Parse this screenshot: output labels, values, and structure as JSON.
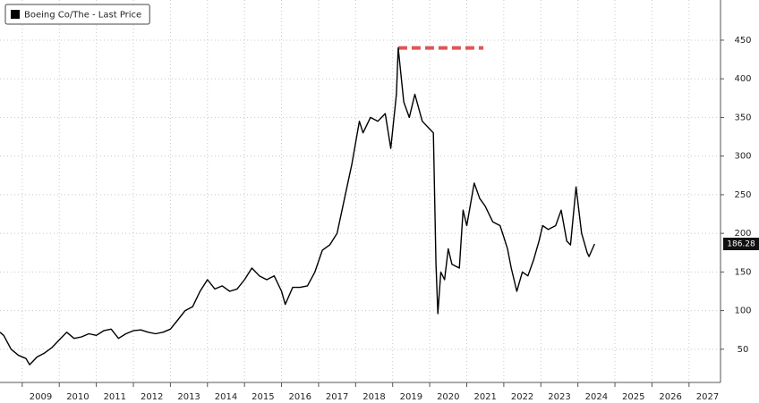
{
  "chart_data": {
    "type": "line",
    "series": [
      {
        "name": "Boeing Co/The - Last Price",
        "color": "#000000",
        "x": [
          2008.4,
          2008.5,
          2008.7,
          2008.9,
          2009.1,
          2009.2,
          2009.4,
          2009.6,
          2009.8,
          2010.0,
          2010.2,
          2010.4,
          2010.6,
          2010.8,
          2011.0,
          2011.2,
          2011.4,
          2011.6,
          2011.8,
          2012.0,
          2012.2,
          2012.4,
          2012.6,
          2012.8,
          2013.0,
          2013.2,
          2013.4,
          2013.6,
          2013.8,
          2014.0,
          2014.2,
          2014.4,
          2014.6,
          2014.8,
          2015.0,
          2015.2,
          2015.4,
          2015.6,
          2015.8,
          2016.0,
          2016.1,
          2016.3,
          2016.5,
          2016.7,
          2016.9,
          2017.1,
          2017.3,
          2017.5,
          2017.7,
          2017.9,
          2018.1,
          2018.2,
          2018.4,
          2018.6,
          2018.8,
          2018.95,
          2019.1,
          2019.15,
          2019.3,
          2019.45,
          2019.6,
          2019.8,
          2020.0,
          2020.1,
          2020.17,
          2020.22,
          2020.3,
          2020.4,
          2020.5,
          2020.6,
          2020.8,
          2020.9,
          2021.0,
          2021.2,
          2021.35,
          2021.5,
          2021.7,
          2021.9,
          2022.0,
          2022.1,
          2022.2,
          2022.35,
          2022.5,
          2022.65,
          2022.8,
          2022.95,
          2023.05,
          2023.2,
          2023.4,
          2023.55,
          2023.7,
          2023.8,
          2023.95,
          2024.1,
          2024.25,
          2024.3,
          2024.45
        ],
        "values": [
          72,
          68,
          50,
          42,
          38,
          30,
          40,
          45,
          52,
          62,
          72,
          64,
          66,
          70,
          68,
          74,
          76,
          64,
          70,
          74,
          75,
          72,
          70,
          72,
          76,
          88,
          100,
          105,
          125,
          140,
          128,
          132,
          125,
          128,
          140,
          155,
          145,
          140,
          145,
          125,
          108,
          130,
          130,
          132,
          150,
          178,
          185,
          200,
          245,
          290,
          345,
          330,
          350,
          345,
          355,
          310,
          380,
          440,
          370,
          350,
          380,
          345,
          335,
          330,
          160,
          96,
          150,
          140,
          180,
          160,
          155,
          230,
          210,
          265,
          245,
          235,
          215,
          210,
          195,
          180,
          155,
          125,
          150,
          145,
          165,
          190,
          210,
          205,
          210,
          230,
          190,
          185,
          260,
          200,
          175,
          170,
          186.28
        ]
      }
    ],
    "reference_line": {
      "value": 440,
      "x": [
        2019.15,
        2021.45
      ],
      "color": "#e05555"
    },
    "xlim": [
      2008.4,
      2027.85
    ],
    "xticks": [
      2009,
      2010,
      2011,
      2012,
      2013,
      2014,
      2015,
      2016,
      2017,
      2018,
      2019,
      2020,
      2021,
      2022,
      2023,
      2024,
      2025,
      2026,
      2027
    ],
    "ylim": [
      7,
      502
    ],
    "yticks": [
      50,
      100,
      150,
      200,
      250,
      300,
      350,
      400,
      450
    ],
    "grid": true,
    "legend": "upper left"
  }
}
